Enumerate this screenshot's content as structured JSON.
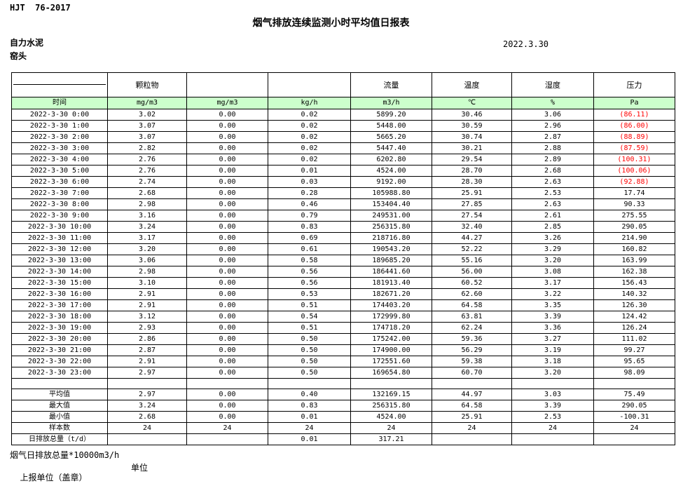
{
  "header": {
    "standard": "HJT  76-2017",
    "title": "烟气排放连续监测小时平均值日报表",
    "company": "自力水泥",
    "location": "窑头",
    "date": "2022.3.30"
  },
  "table": {
    "colors": {
      "unit_row_bg": "#ccffcc",
      "negative_value": "#ff0000"
    },
    "group_headers": [
      "",
      "颗粒物",
      "",
      "",
      "流量",
      "温度",
      "湿度",
      "压力"
    ],
    "unit_row": [
      "时间",
      "mg/m3",
      "mg/m3",
      "kg/h",
      "m3/h",
      "℃",
      "%",
      "Pa"
    ],
    "rows": [
      {
        "time": "2022-3-30 0:00",
        "values": [
          "3.02",
          "0.00",
          "0.02",
          "5899.20",
          "30.46",
          "3.06",
          "(86.11)"
        ]
      },
      {
        "time": "2022-3-30 1:00",
        "values": [
          "3.07",
          "0.00",
          "0.02",
          "5448.00",
          "30.59",
          "2.96",
          "(86.00)"
        ]
      },
      {
        "time": "2022-3-30 2:00",
        "values": [
          "3.07",
          "0.00",
          "0.02",
          "5665.20",
          "30.74",
          "2.87",
          "(88.89)"
        ]
      },
      {
        "time": "2022-3-30 3:00",
        "values": [
          "2.82",
          "0.00",
          "0.02",
          "5447.40",
          "30.21",
          "2.88",
          "(87.59)"
        ]
      },
      {
        "time": "2022-3-30 4:00",
        "values": [
          "2.76",
          "0.00",
          "0.02",
          "6202.80",
          "29.54",
          "2.89",
          "(100.31)"
        ]
      },
      {
        "time": "2022-3-30 5:00",
        "values": [
          "2.76",
          "0.00",
          "0.01",
          "4524.00",
          "28.70",
          "2.68",
          "(100.06)"
        ]
      },
      {
        "time": "2022-3-30 6:00",
        "values": [
          "2.74",
          "0.00",
          "0.03",
          "9192.00",
          "28.30",
          "2.63",
          "(92.88)"
        ]
      },
      {
        "time": "2022-3-30 7:00",
        "values": [
          "2.68",
          "0.00",
          "0.28",
          "105988.80",
          "25.91",
          "2.53",
          "17.74"
        ]
      },
      {
        "time": "2022-3-30 8:00",
        "values": [
          "2.98",
          "0.00",
          "0.46",
          "153404.40",
          "27.85",
          "2.63",
          "90.33"
        ]
      },
      {
        "time": "2022-3-30 9:00",
        "values": [
          "3.16",
          "0.00",
          "0.79",
          "249531.00",
          "27.54",
          "2.61",
          "275.55"
        ]
      },
      {
        "time": "2022-3-30 10:00",
        "values": [
          "3.24",
          "0.00",
          "0.83",
          "256315.80",
          "32.40",
          "2.85",
          "290.05"
        ]
      },
      {
        "time": "2022-3-30 11:00",
        "values": [
          "3.17",
          "0.00",
          "0.69",
          "218716.80",
          "44.27",
          "3.26",
          "214.90"
        ]
      },
      {
        "time": "2022-3-30 12:00",
        "values": [
          "3.20",
          "0.00",
          "0.61",
          "190543.20",
          "52.22",
          "3.29",
          "160.82"
        ]
      },
      {
        "time": "2022-3-30 13:00",
        "values": [
          "3.06",
          "0.00",
          "0.58",
          "189685.20",
          "55.16",
          "3.20",
          "163.99"
        ]
      },
      {
        "time": "2022-3-30 14:00",
        "values": [
          "2.98",
          "0.00",
          "0.56",
          "186441.60",
          "56.00",
          "3.08",
          "162.38"
        ]
      },
      {
        "time": "2022-3-30 15:00",
        "values": [
          "3.10",
          "0.00",
          "0.56",
          "181913.40",
          "60.52",
          "3.17",
          "156.43"
        ]
      },
      {
        "time": "2022-3-30 16:00",
        "values": [
          "2.91",
          "0.00",
          "0.53",
          "182671.20",
          "62.60",
          "3.22",
          "140.32"
        ]
      },
      {
        "time": "2022-3-30 17:00",
        "values": [
          "2.91",
          "0.00",
          "0.51",
          "174403.20",
          "64.58",
          "3.35",
          "126.30"
        ]
      },
      {
        "time": "2022-3-30 18:00",
        "values": [
          "3.12",
          "0.00",
          "0.54",
          "172999.80",
          "63.81",
          "3.39",
          "124.42"
        ]
      },
      {
        "time": "2022-3-30 19:00",
        "values": [
          "2.93",
          "0.00",
          "0.51",
          "174718.20",
          "62.24",
          "3.36",
          "126.24"
        ]
      },
      {
        "time": "2022-3-30 20:00",
        "values": [
          "2.86",
          "0.00",
          "0.50",
          "175242.00",
          "59.36",
          "3.27",
          "111.02"
        ]
      },
      {
        "time": "2022-3-30 21:00",
        "values": [
          "2.87",
          "0.00",
          "0.50",
          "174900.00",
          "56.29",
          "3.19",
          "99.27"
        ]
      },
      {
        "time": "2022-3-30 22:00",
        "values": [
          "2.91",
          "0.00",
          "0.50",
          "172551.60",
          "59.38",
          "3.18",
          "95.65"
        ]
      },
      {
        "time": "2022-3-30 23:00",
        "values": [
          "2.97",
          "0.00",
          "0.50",
          "169654.80",
          "60.70",
          "3.20",
          "98.09"
        ]
      }
    ],
    "blank_row": [
      "",
      "",
      "",
      "",
      "",
      "",
      "",
      ""
    ],
    "summary_rows": [
      {
        "label": "平均值",
        "values": [
          "2.97",
          "0.00",
          "0.40",
          "132169.15",
          "44.97",
          "3.03",
          "75.49"
        ]
      },
      {
        "label": "最大值",
        "values": [
          "3.24",
          "0.00",
          "0.83",
          "256315.80",
          "64.58",
          "3.39",
          "290.05"
        ]
      },
      {
        "label": "最小值",
        "values": [
          "2.68",
          "0.00",
          "0.01",
          "4524.00",
          "25.91",
          "2.53",
          "-100.31"
        ]
      },
      {
        "label": "样本数",
        "values": [
          "24",
          "24",
          "24",
          "24",
          "24",
          "24",
          "24"
        ]
      },
      {
        "label": "日排放总量（t/d）",
        "values": [
          "",
          "",
          "0.01",
          "317.21",
          "",
          "",
          ""
        ]
      }
    ]
  },
  "footer": {
    "note": "烟气日排放总量*10000m3/h",
    "report_unit_label": "上报单位（盖章）",
    "unit_label": "单位"
  }
}
